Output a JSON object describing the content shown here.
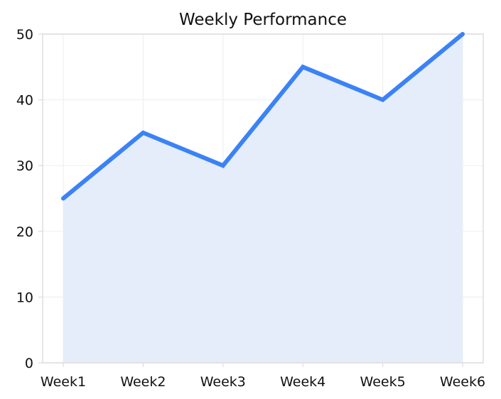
{
  "chart_data": {
    "type": "area",
    "title": "Weekly Performance",
    "xlabel": "",
    "ylabel": "",
    "categories": [
      "Week1",
      "Week2",
      "Week3",
      "Week4",
      "Week5",
      "Week6"
    ],
    "values": [
      25,
      35,
      30,
      45,
      40,
      50
    ],
    "ylim": [
      0,
      50
    ],
    "yticks": [
      0,
      10,
      20,
      30,
      40,
      50
    ],
    "grid": true,
    "legend": "none",
    "colors": {
      "line": "#3b82f6",
      "fill": "#e5edfb",
      "grid": "#f0f0f0",
      "axis": "#dddddd",
      "text": "#111111"
    }
  }
}
